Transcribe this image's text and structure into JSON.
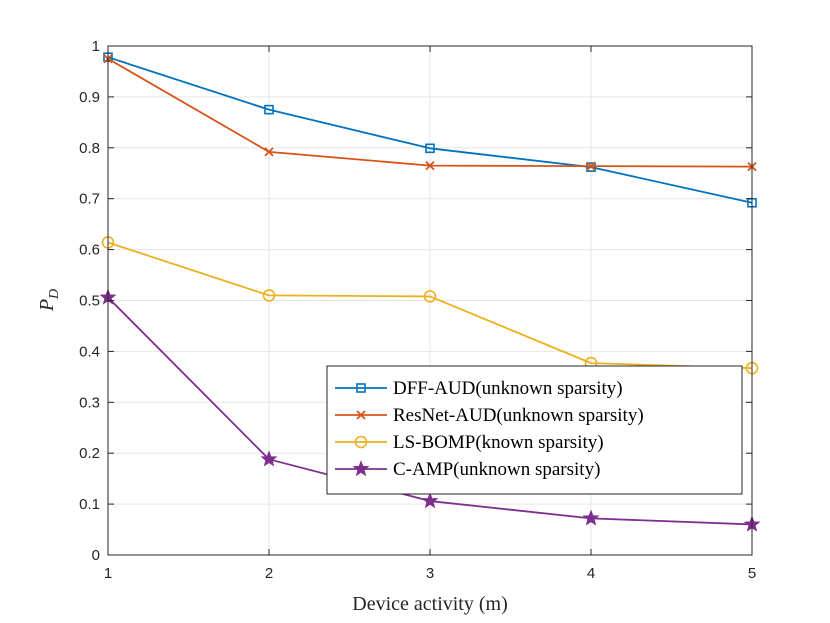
{
  "chart_data": {
    "type": "line",
    "title": "",
    "xlabel": "Device activity (m)",
    "ylabel_main": "P",
    "ylabel_sub": "D",
    "x": [
      1,
      2,
      3,
      4,
      5
    ],
    "xlim": [
      1,
      5
    ],
    "ylim": [
      0,
      1
    ],
    "xticks": [
      "1",
      "2",
      "3",
      "4",
      "5"
    ],
    "yticks": [
      "0",
      "0.1",
      "0.2",
      "0.3",
      "0.4",
      "0.5",
      "0.6",
      "0.7",
      "0.8",
      "0.9",
      "1"
    ],
    "grid": true,
    "legend_position": "lower-right",
    "series": [
      {
        "name": "DFF-AUD(unknown sparsity)",
        "color": "#0072BD",
        "marker": "square",
        "values": [
          0.978,
          0.875,
          0.799,
          0.762,
          0.692
        ]
      },
      {
        "name": "ResNet-AUD(unknown sparsity)",
        "color": "#D95319",
        "marker": "x",
        "values": [
          0.975,
          0.792,
          0.765,
          0.764,
          0.763
        ]
      },
      {
        "name": "LS-BOMP(known sparsity)",
        "color": "#EDB120",
        "marker": "circle",
        "values": [
          0.614,
          0.51,
          0.508,
          0.377,
          0.367
        ]
      },
      {
        "name": "C-AMP(unknown sparsity)",
        "color": "#7E2F8E",
        "marker": "star",
        "values": [
          0.506,
          0.188,
          0.106,
          0.072,
          0.06
        ]
      }
    ]
  }
}
